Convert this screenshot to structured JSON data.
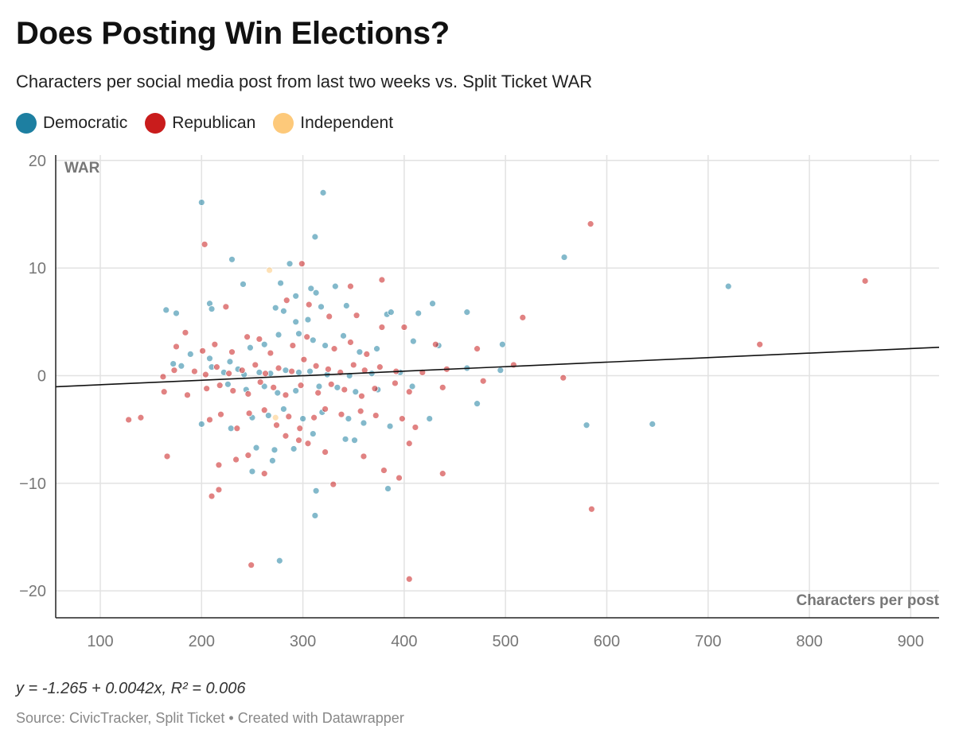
{
  "header": {
    "title": "Does Posting Win Elections?",
    "subtitle": "Characters per social media post from last two weeks vs. Split Ticket WAR"
  },
  "legend": [
    {
      "label": "Democratic",
      "color": "#1d7fa1"
    },
    {
      "label": "Republican",
      "color": "#c91c1c"
    },
    {
      "label": "Independent",
      "color": "#fdc97a"
    }
  ],
  "footer": {
    "regression": "y = -1.265 + 0.0042x, R² = 0.006",
    "source": "Source: CivicTracker, Split Ticket • Created with Datawrapper"
  },
  "chart_data": {
    "type": "scatter",
    "xlabel": "Characters per post",
    "ylabel": "WAR",
    "xlim": [
      56,
      928
    ],
    "ylim": [
      -22.5,
      20.5
    ],
    "x_ticks": [
      100,
      200,
      300,
      400,
      500,
      600,
      700,
      800,
      900
    ],
    "y_ticks": [
      20,
      10,
      0,
      -10,
      -20
    ],
    "y_tick_labels": [
      "20",
      "10",
      "0",
      "−10",
      "−20"
    ],
    "grid": true,
    "trendline": {
      "intercept": -1.265,
      "slope": 0.0042
    },
    "series": [
      {
        "name": "Democratic",
        "color": "#1d7fa1",
        "points": [
          [
            200,
            16.1
          ],
          [
            320,
            17.0
          ],
          [
            312,
            12.9
          ],
          [
            230,
            10.8
          ],
          [
            287,
            10.4
          ],
          [
            558,
            11.0
          ],
          [
            720,
            8.3
          ],
          [
            241,
            8.5
          ],
          [
            278,
            8.6
          ],
          [
            308,
            8.1
          ],
          [
            332,
            8.3
          ],
          [
            293,
            7.4
          ],
          [
            313,
            7.7
          ],
          [
            165,
            6.1
          ],
          [
            175,
            5.8
          ],
          [
            208,
            6.7
          ],
          [
            210,
            6.2
          ],
          [
            273,
            6.3
          ],
          [
            281,
            6.0
          ],
          [
            293,
            5.0
          ],
          [
            305,
            5.2
          ],
          [
            318,
            6.4
          ],
          [
            343,
            6.5
          ],
          [
            383,
            5.7
          ],
          [
            387,
            5.9
          ],
          [
            414,
            5.8
          ],
          [
            428,
            6.7
          ],
          [
            462,
            5.9
          ],
          [
            189,
            2.0
          ],
          [
            172,
            1.1
          ],
          [
            208,
            1.6
          ],
          [
            228,
            1.3
          ],
          [
            248,
            2.6
          ],
          [
            262,
            2.9
          ],
          [
            276,
            3.8
          ],
          [
            296,
            3.9
          ],
          [
            310,
            3.3
          ],
          [
            322,
            2.8
          ],
          [
            340,
            3.7
          ],
          [
            356,
            2.2
          ],
          [
            373,
            2.5
          ],
          [
            409,
            3.2
          ],
          [
            434,
            2.8
          ],
          [
            497,
            2.9
          ],
          [
            180,
            0.9
          ],
          [
            210,
            0.8
          ],
          [
            222,
            0.3
          ],
          [
            236,
            0.6
          ],
          [
            242,
            0.1
          ],
          [
            257,
            0.3
          ],
          [
            268,
            0.2
          ],
          [
            283,
            0.5
          ],
          [
            296,
            0.3
          ],
          [
            307,
            0.4
          ],
          [
            324,
            0.1
          ],
          [
            346,
            0.0
          ],
          [
            368,
            0.2
          ],
          [
            396,
            0.3
          ],
          [
            462,
            0.7
          ],
          [
            495,
            0.5
          ],
          [
            226,
            -0.8
          ],
          [
            244,
            -1.3
          ],
          [
            262,
            -1.0
          ],
          [
            275,
            -1.6
          ],
          [
            293,
            -1.4
          ],
          [
            316,
            -1.0
          ],
          [
            334,
            -1.1
          ],
          [
            352,
            -1.5
          ],
          [
            374,
            -1.3
          ],
          [
            408,
            -1.0
          ],
          [
            472,
            -2.6
          ],
          [
            200,
            -4.5
          ],
          [
            229,
            -4.9
          ],
          [
            250,
            -3.9
          ],
          [
            266,
            -3.7
          ],
          [
            281,
            -3.1
          ],
          [
            300,
            -4.0
          ],
          [
            319,
            -3.4
          ],
          [
            345,
            -4.0
          ],
          [
            360,
            -4.4
          ],
          [
            386,
            -4.7
          ],
          [
            425,
            -4.0
          ],
          [
            254,
            -6.7
          ],
          [
            272,
            -6.9
          ],
          [
            291,
            -6.8
          ],
          [
            310,
            -5.4
          ],
          [
            342,
            -5.9
          ],
          [
            351,
            -6.0
          ],
          [
            580,
            -4.6
          ],
          [
            645,
            -4.5
          ],
          [
            250,
            -8.9
          ],
          [
            270,
            -7.9
          ],
          [
            313,
            -10.7
          ],
          [
            384,
            -10.5
          ],
          [
            312,
            -13.0
          ],
          [
            277,
            -17.2
          ]
        ]
      },
      {
        "name": "Republican",
        "color": "#c91c1c",
        "points": [
          [
            584,
            14.1
          ],
          [
            203,
            12.2
          ],
          [
            299,
            10.4
          ],
          [
            855,
            8.8
          ],
          [
            378,
            8.9
          ],
          [
            224,
            6.4
          ],
          [
            347,
            8.3
          ],
          [
            284,
            7.0
          ],
          [
            306,
            6.6
          ],
          [
            326,
            5.5
          ],
          [
            353,
            5.6
          ],
          [
            517,
            5.4
          ],
          [
            378,
            4.5
          ],
          [
            184,
            4.0
          ],
          [
            175,
            2.7
          ],
          [
            201,
            2.3
          ],
          [
            213,
            2.9
          ],
          [
            230,
            2.2
          ],
          [
            245,
            3.6
          ],
          [
            257,
            3.4
          ],
          [
            268,
            2.1
          ],
          [
            290,
            2.8
          ],
          [
            304,
            3.6
          ],
          [
            331,
            2.5
          ],
          [
            347,
            3.1
          ],
          [
            363,
            2.0
          ],
          [
            400,
            4.5
          ],
          [
            431,
            2.9
          ],
          [
            472,
            2.5
          ],
          [
            751,
            2.9
          ],
          [
            162,
            -0.1
          ],
          [
            173,
            0.5
          ],
          [
            193,
            0.4
          ],
          [
            204,
            0.1
          ],
          [
            215,
            0.8
          ],
          [
            227,
            0.2
          ],
          [
            240,
            0.5
          ],
          [
            253,
            1.0
          ],
          [
            263,
            0.2
          ],
          [
            276,
            0.7
          ],
          [
            289,
            0.4
          ],
          [
            301,
            1.5
          ],
          [
            313,
            0.9
          ],
          [
            325,
            0.6
          ],
          [
            337,
            0.3
          ],
          [
            350,
            1.0
          ],
          [
            361,
            0.5
          ],
          [
            376,
            0.8
          ],
          [
            392,
            0.4
          ],
          [
            418,
            0.3
          ],
          [
            442,
            0.6
          ],
          [
            508,
            1.0
          ],
          [
            557,
            -0.2
          ],
          [
            205,
            -1.2
          ],
          [
            163,
            -1.5
          ],
          [
            186,
            -1.8
          ],
          [
            218,
            -0.9
          ],
          [
            231,
            -1.4
          ],
          [
            246,
            -1.7
          ],
          [
            258,
            -0.6
          ],
          [
            271,
            -1.1
          ],
          [
            283,
            -1.8
          ],
          [
            298,
            -0.9
          ],
          [
            315,
            -1.6
          ],
          [
            328,
            -0.8
          ],
          [
            341,
            -1.3
          ],
          [
            358,
            -1.9
          ],
          [
            371,
            -1.2
          ],
          [
            391,
            -0.7
          ],
          [
            405,
            -1.5
          ],
          [
            438,
            -1.1
          ],
          [
            478,
            -0.5
          ],
          [
            208,
            -4.1
          ],
          [
            128,
            -4.1
          ],
          [
            140,
            -3.9
          ],
          [
            219,
            -3.6
          ],
          [
            235,
            -4.9
          ],
          [
            247,
            -3.5
          ],
          [
            262,
            -3.2
          ],
          [
            274,
            -4.6
          ],
          [
            286,
            -3.8
          ],
          [
            297,
            -4.9
          ],
          [
            311,
            -3.9
          ],
          [
            322,
            -3.1
          ],
          [
            338,
            -3.6
          ],
          [
            357,
            -3.3
          ],
          [
            372,
            -3.7
          ],
          [
            398,
            -4.0
          ],
          [
            411,
            -4.8
          ],
          [
            166,
            -7.5
          ],
          [
            210,
            -11.2
          ],
          [
            217,
            -10.6
          ],
          [
            217,
            -8.3
          ],
          [
            234,
            -7.8
          ],
          [
            246,
            -7.4
          ],
          [
            262,
            -9.1
          ],
          [
            283,
            -5.6
          ],
          [
            296,
            -6.0
          ],
          [
            305,
            -6.3
          ],
          [
            322,
            -7.1
          ],
          [
            330,
            -10.1
          ],
          [
            360,
            -7.5
          ],
          [
            380,
            -8.8
          ],
          [
            395,
            -9.5
          ],
          [
            405,
            -6.3
          ],
          [
            438,
            -9.1
          ],
          [
            585,
            -12.4
          ],
          [
            249,
            -17.6
          ],
          [
            405,
            -18.9
          ]
        ]
      },
      {
        "name": "Independent",
        "color": "#fdc97a",
        "points": [
          [
            267,
            9.8
          ],
          [
            273,
            -3.9
          ]
        ]
      }
    ]
  }
}
